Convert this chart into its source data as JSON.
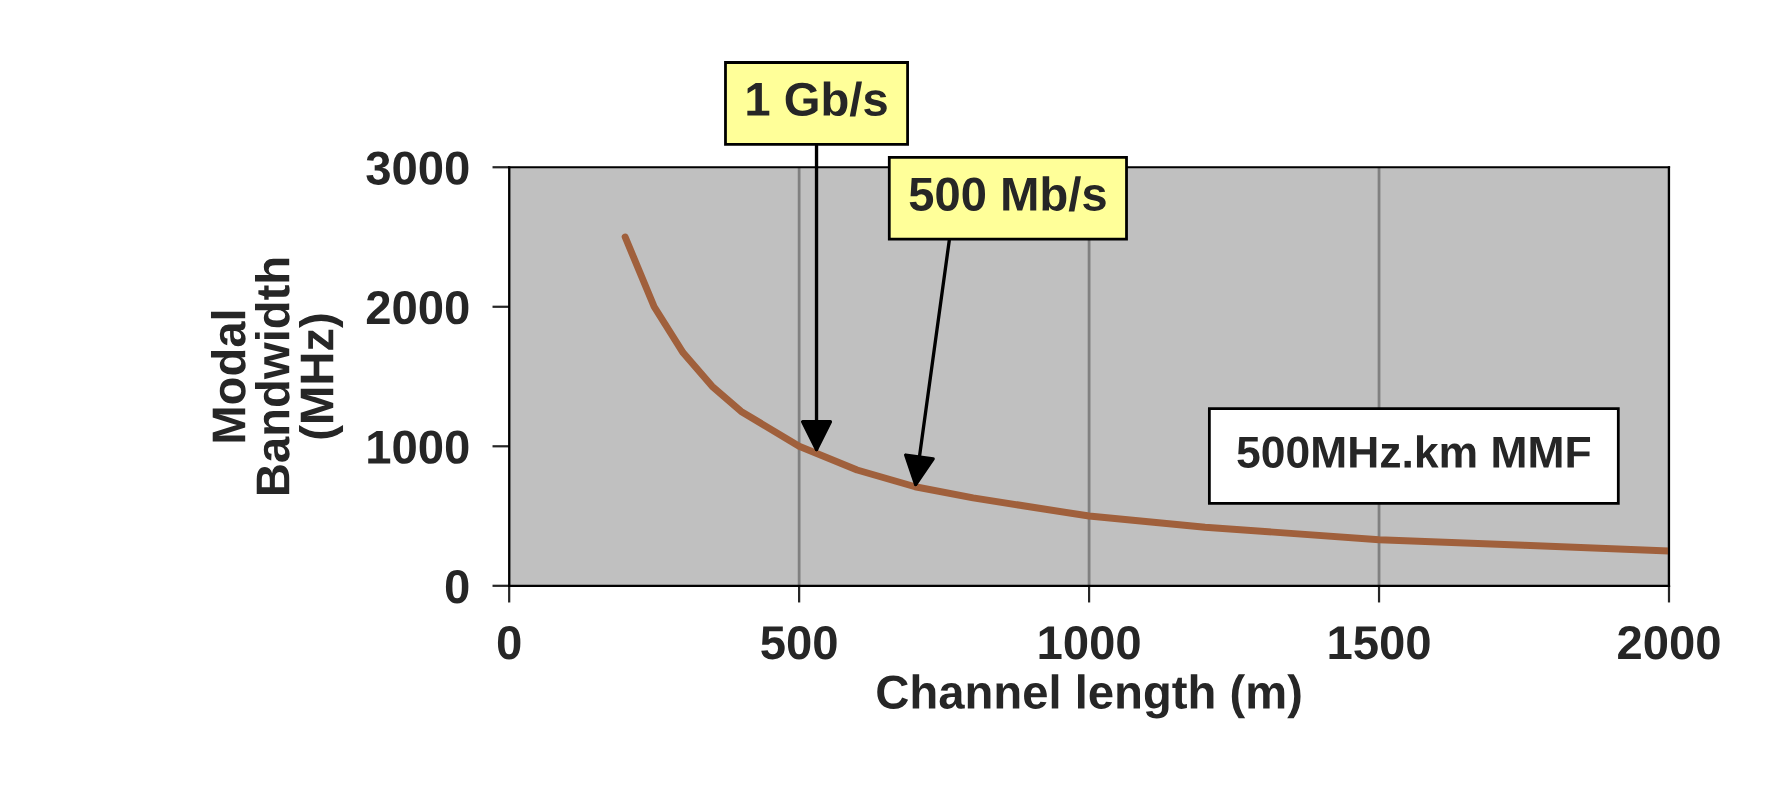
{
  "chart_data": {
    "type": "line",
    "xlabel": "Channel length (m)",
    "ylabel": "Modal\nBandwidth\n(MHz)",
    "x": [
      200,
      250,
      300,
      350,
      400,
      500,
      600,
      700,
      800,
      1000,
      1200,
      1500,
      1750,
      2000
    ],
    "series": [
      {
        "color": "#a0603c",
        "values": [
          2500,
          2000,
          1670,
          1430,
          1250,
          1000,
          830,
          710,
          630,
          500,
          420,
          330,
          290,
          250
        ]
      }
    ],
    "xlim": [
      0,
      2000
    ],
    "ylim": [
      0,
      3000
    ],
    "xticks": [
      0,
      500,
      1000,
      1500,
      2000
    ],
    "yticks": [
      0,
      1000,
      2000,
      3000
    ],
    "grid": "x",
    "legend": false,
    "marker": "none",
    "line_style": "solid",
    "annotations": [
      {
        "text": "1 Gb/s",
        "x": 530,
        "y": 950
      },
      {
        "text": "500 Mb/s",
        "x": 700,
        "y": 700
      },
      "500MHz.km MMF"
    ]
  }
}
